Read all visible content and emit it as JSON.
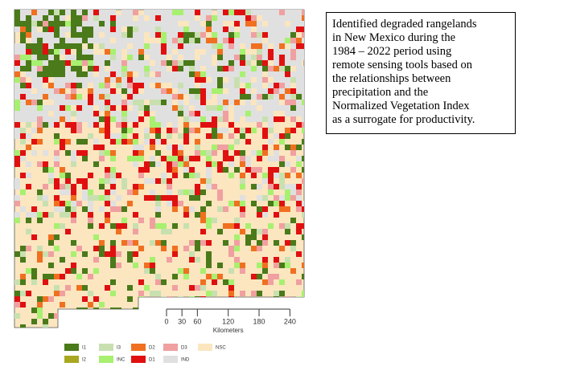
{
  "caption": [
    "Identified degraded rangelands",
    "in New Mexico during the",
    "1984 – 2022 period using",
    "remote sensing tools based on",
    "the relationships between",
    "precipitation and the",
    "Normalized Vegetation Index",
    "as a surrogate for productivity."
  ],
  "scale": {
    "ticks": [
      0,
      30,
      60,
      120,
      180,
      240
    ],
    "unit": "Kilometers"
  },
  "legend": [
    {
      "label": "I1",
      "color": "#4a7a1a"
    },
    {
      "label": "I3",
      "color": "#c8e0b0"
    },
    {
      "label": "D2",
      "color": "#f07020"
    },
    {
      "label": "D3",
      "color": "#f0a0a0"
    },
    {
      "label": "NSC",
      "color": "#fbe6c0"
    },
    {
      "label": "I2",
      "color": "#a8a820"
    },
    {
      "label": "INC",
      "color": "#a8f070"
    },
    {
      "label": "D1",
      "color": "#e01010"
    },
    {
      "label": "IND",
      "color": "#e0e0e0"
    }
  ]
}
